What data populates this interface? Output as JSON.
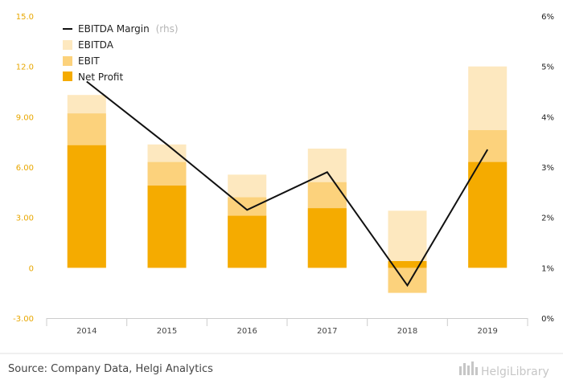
{
  "chart_data": {
    "type": "bar",
    "categories": [
      "2014",
      "2015",
      "2016",
      "2017",
      "2018",
      "2019"
    ],
    "series": [
      {
        "name": "EBITDA",
        "values": [
          10.3,
          7.35,
          5.55,
          7.1,
          3.4,
          12.0
        ],
        "color": "#fde8bf"
      },
      {
        "name": "EBIT",
        "values": [
          9.2,
          6.3,
          4.2,
          5.1,
          -1.5,
          8.2
        ],
        "color": "#fcd27c"
      },
      {
        "name": "Net Profit",
        "values": [
          7.3,
          4.9,
          3.1,
          3.55,
          0.4,
          6.3
        ],
        "color": "#f5ab00"
      },
      {
        "name": "EBITDA Margin",
        "name_suffix": "(rhs)",
        "axis": "right",
        "values": [
          4.7,
          3.45,
          2.15,
          2.9,
          0.65,
          3.35
        ],
        "color": "#111111"
      }
    ],
    "ylim": [
      -3,
      15
    ],
    "y_ticks": [
      "-3.00",
      "0",
      "3.00",
      "6.00",
      "9.00",
      "12.0",
      "15.0"
    ],
    "y2lim": [
      0,
      6
    ],
    "y2_ticks": [
      "0%",
      "1%",
      "2%",
      "3%",
      "4%",
      "5%",
      "6%"
    ],
    "grid": false,
    "legend_position": "top-left"
  },
  "source_text": "Source: Company Data, Helgi Analytics",
  "brand_text": "HelgiLibrary"
}
